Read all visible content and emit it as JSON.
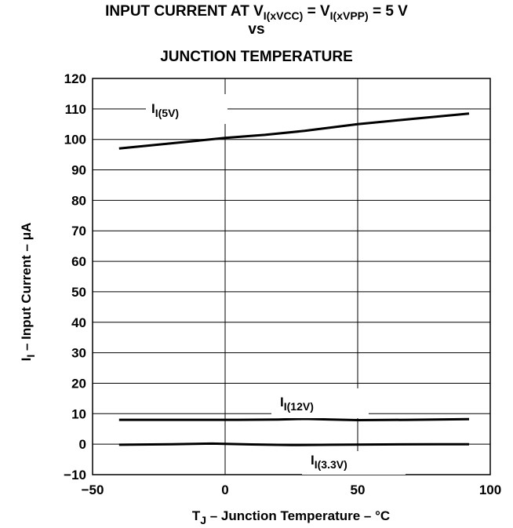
{
  "chart_data": {
    "type": "line",
    "title": {
      "line1_prefix": "INPUT CURRENT AT V",
      "line1_sub1": "I(xVCC)",
      "line1_mid": " = V",
      "line1_sub2": "I(xVPP)",
      "line1_suffix": " = 5 V",
      "line2": "vs",
      "line3": "JUNCTION TEMPERATURE"
    },
    "xlabel": {
      "prefix": "T",
      "sub": "J",
      "suffix": " – Junction Temperature – °C"
    },
    "ylabel": {
      "prefix": "I",
      "sub": "I",
      "suffix": " – Input Current – μA"
    },
    "xlim": [
      -50,
      100
    ],
    "ylim": [
      -10,
      120
    ],
    "xticks": [
      -50,
      0,
      50,
      100
    ],
    "yticks": [
      -10,
      0,
      10,
      20,
      30,
      40,
      50,
      60,
      70,
      80,
      90,
      100,
      110,
      120
    ],
    "grid": true,
    "series": [
      {
        "name": {
          "prefix": "I",
          "sub": "I(5V)"
        },
        "x": [
          -40,
          -25,
          -10,
          0,
          15,
          30,
          50,
          70,
          92
        ],
        "y": [
          97,
          98.3,
          99.6,
          100.5,
          101.5,
          102.8,
          105,
          106.7,
          108.5
        ]
      },
      {
        "name": {
          "prefix": "I",
          "sub": "I(12V)"
        },
        "x": [
          -40,
          -10,
          5,
          20,
          30,
          40,
          50,
          70,
          92
        ],
        "y": [
          8,
          8,
          8,
          8.1,
          8.3,
          8.1,
          7.9,
          8,
          8.2
        ]
      },
      {
        "name": {
          "prefix": "I",
          "sub": "I(3.3V)"
        },
        "x": [
          -40,
          -20,
          -5,
          10,
          25,
          40,
          60,
          80,
          92
        ],
        "y": [
          -0.2,
          0,
          0.2,
          -0.1,
          -0.3,
          -0.2,
          -0.1,
          0,
          0
        ]
      }
    ]
  }
}
